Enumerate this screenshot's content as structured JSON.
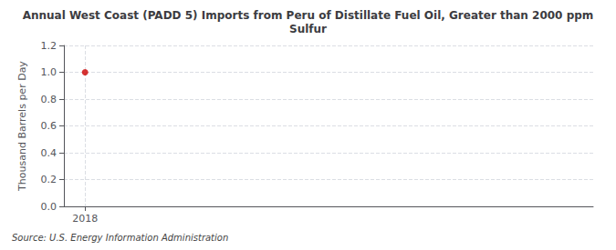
{
  "chart_data": {
    "type": "scatter",
    "title": "Annual West Coast (PADD 5) Imports from Peru of Distillate Fuel Oil, Greater than 2000 ppm\nSulfur",
    "ylabel": "Thousand Barrels per Day",
    "annotation": "Source: U.S. Energy Information Administration",
    "x": [
      2018
    ],
    "values": [
      1.0
    ],
    "color": "#cc0000",
    "marker": "circle",
    "xlim": [
      2017.5,
      2030
    ],
    "xticks": [
      2018
    ],
    "ylim": [
      0.0,
      1.2
    ],
    "yticks": [
      {
        "value": 0.0,
        "label": "0.0"
      },
      0.2,
      0.4,
      0.6,
      0.8,
      {
        "value": 1.0,
        "label": "1.0"
      },
      1.2
    ],
    "grid": true
  }
}
